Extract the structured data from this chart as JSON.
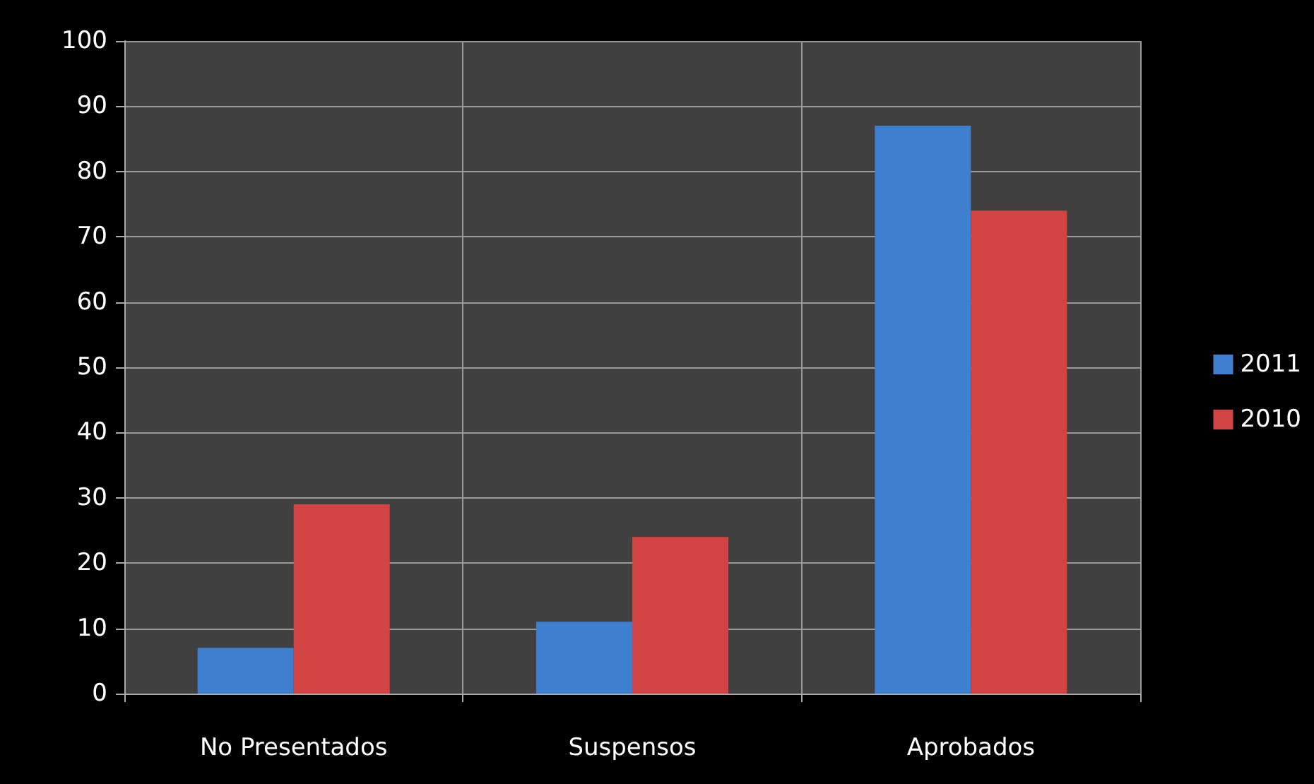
{
  "chart_data": {
    "type": "bar",
    "categories": [
      "No Presentados",
      "Suspensos",
      "Aprobados"
    ],
    "series": [
      {
        "name": "2011",
        "color": "#3f7fd0",
        "values": [
          7,
          11,
          87
        ]
      },
      {
        "name": "2010",
        "color": "#d24444",
        "values": [
          29,
          24,
          74
        ]
      }
    ],
    "ylim": [
      0,
      100
    ],
    "yticks": [
      0,
      10,
      20,
      30,
      40,
      50,
      60,
      70,
      80,
      90,
      100
    ],
    "grid": true,
    "legend": "right"
  }
}
